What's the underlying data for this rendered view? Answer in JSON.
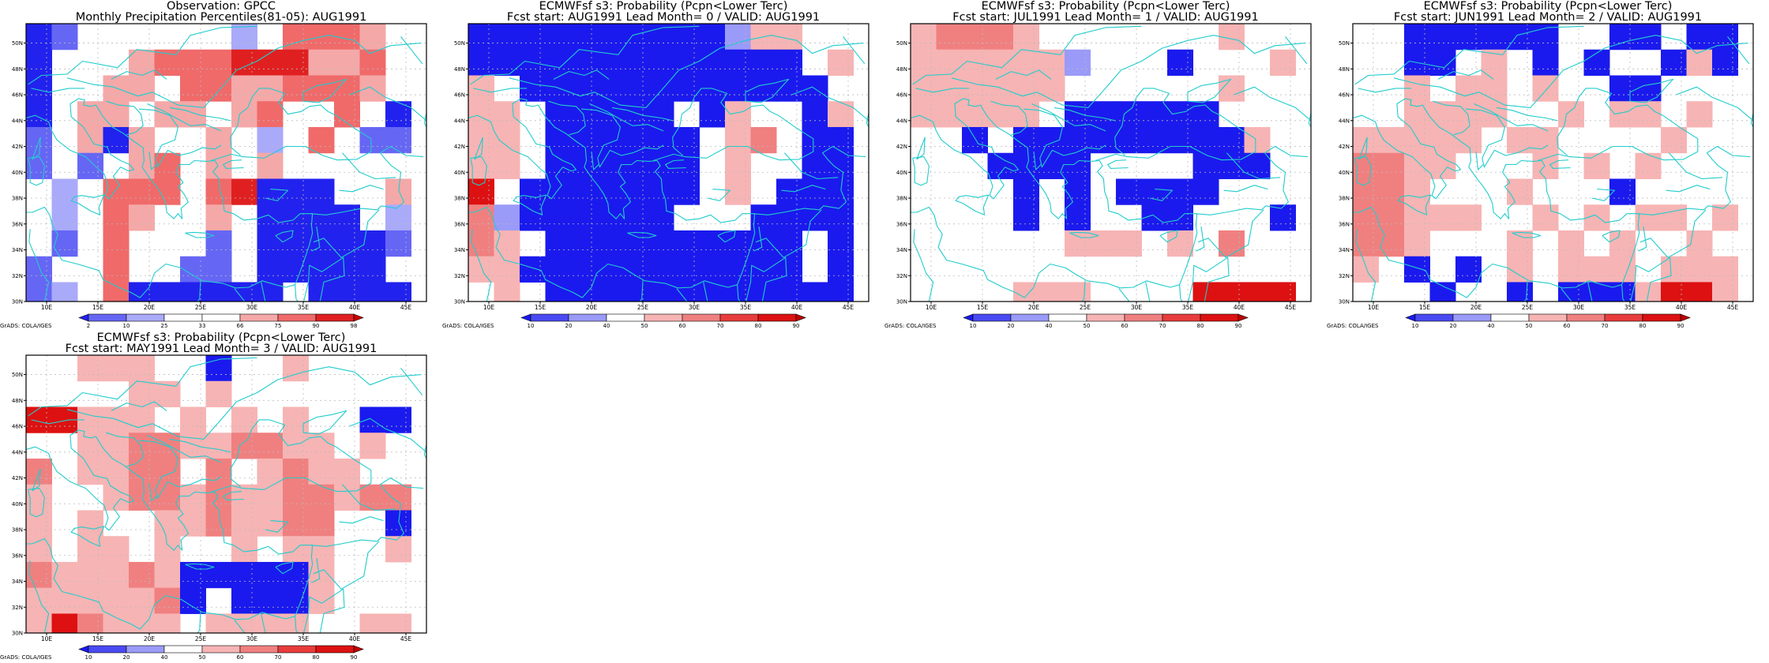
{
  "figure": {
    "lon_range": [
      8,
      47
    ],
    "lat_range": [
      30,
      51.5
    ],
    "x_ticks": [
      {
        "value": 10,
        "label": "10E"
      },
      {
        "value": 15,
        "label": "15E"
      },
      {
        "value": 20,
        "label": "20E"
      },
      {
        "value": 25,
        "label": "25E"
      },
      {
        "value": 30,
        "label": "30E"
      },
      {
        "value": 35,
        "label": "35E"
      },
      {
        "value": 40,
        "label": "40E"
      },
      {
        "value": 45,
        "label": "45E"
      }
    ],
    "y_ticks": [
      {
        "value": 30,
        "label": "30N"
      },
      {
        "value": 32,
        "label": "32N"
      },
      {
        "value": 34,
        "label": "34N"
      },
      {
        "value": 36,
        "label": "36N"
      },
      {
        "value": 38,
        "label": "38N"
      },
      {
        "value": 40,
        "label": "40N"
      },
      {
        "value": 42,
        "label": "42N"
      },
      {
        "value": 44,
        "label": "44N"
      },
      {
        "value": 46,
        "label": "46N"
      },
      {
        "value": 48,
        "label": "48N"
      },
      {
        "value": 50,
        "label": "50N"
      }
    ],
    "grid_lines": "dotted",
    "colors": {
      "grid_cell_size_deg": 2.5,
      "coastline": "#22cccc",
      "obs_scale": [
        "#2222ee",
        "#6666f5",
        "#aaaafa",
        "#ffffff",
        "#ffffff",
        "#f5a8a8",
        "#f06a6a",
        "#e02020",
        "#cc0000"
      ],
      "prob_scale": [
        "#1a1aee",
        "#4a4af2",
        "#9a9af8",
        "#ffffff",
        "#f7b4b4",
        "#f08080",
        "#e83c3c",
        "#dd1111",
        "#c00000"
      ]
    }
  },
  "panels": [
    {
      "id": "obs",
      "title1": "Observation: GPCC",
      "title2": "Monthly Precipitation Percentiles(81-05): AUG1991",
      "colorbar": {
        "scale": "obs",
        "labels": [
          "2",
          "10",
          "25",
          "33",
          "66",
          "75",
          "90",
          "98"
        ]
      },
      "credit": "GrADS: COLA/IGES",
      "grid_ref": "G1"
    },
    {
      "id": "lead0",
      "title1": "ECMWFsf s3: Probability (Pcpn<Lower Terc)",
      "title2": "Fcst start: AUG1991   Lead Month= 0 / VALID: AUG1991",
      "colorbar": {
        "scale": "prob",
        "labels": [
          "10",
          "20",
          "40",
          "50",
          "60",
          "70",
          "80",
          "90"
        ]
      },
      "credit": "GrADS: COLA/IGES",
      "grid_ref": "G2"
    },
    {
      "id": "lead1",
      "title1": "ECMWFsf s3: Probability (Pcpn<Lower Terc)",
      "title2": "Fcst start: JUL1991   Lead Month= 1 / VALID: AUG1991",
      "colorbar": {
        "scale": "prob",
        "labels": [
          "10",
          "20",
          "40",
          "50",
          "60",
          "70",
          "80",
          "90"
        ]
      },
      "credit": "GrADS: COLA/IGES",
      "grid_ref": "G3"
    },
    {
      "id": "lead2",
      "title1": "ECMWFsf s3: Probability (Pcpn<Lower Terc)",
      "title2": "Fcst start: JUN1991   Lead Month= 2 / VALID: AUG1991",
      "colorbar": {
        "scale": "prob",
        "labels": [
          "10",
          "20",
          "40",
          "50",
          "60",
          "70",
          "80",
          "90"
        ]
      },
      "credit": "GrADS: COLA/IGES",
      "grid_ref": "G4"
    },
    {
      "id": "lead3",
      "title1": "ECMWFsf s3: Probability (Pcpn<Lower Terc)",
      "title2": "Fcst start: MAY1991   Lead Month= 3 / VALID: AUG1991",
      "colorbar": {
        "scale": "prob",
        "labels": [
          "10",
          "20",
          "40",
          "50",
          "60",
          "70",
          "80",
          "90"
        ]
      },
      "credit": "GrADS: COLA/IGES",
      "grid_ref": "G5"
    }
  ],
  "grids": {
    "G1": [
      "01..5...2.7776.",
      "0.3.6777888667.",
      "0..66.77667776.",
      "0.66.66.67..7.0",
      "1.606..6.2.7.11",
      "1.1.67.6.6.....",
      ".2.777.78000..6",
      ".2.76..6.0000.2",
      ".1.7...1.000001",
      "1..7..11.00000.",
      "12.7000000.0000"
    ],
    "G2": [
      "1111111111566..",
      "1111111111111.6",
      "6.111111111111.",
      "66.11111.16..16",
      "66.111111.67.11",
      "66.111111.6..11",
      "8.1111111.6.111",
      "75111111...1111",
      "76.1111111111.1",
      "6611111111111.1",
      ".6.111111111111"
    ],
    "G3": [
      "67776.......6..",
      "6666665...1...6",
      "666666......6..",
      "66666.111111...",
      "..1.1111111116.",
      "...1111....111.",
      "....1.1.1111...",
      "....1.1..11...1",
      "......666.6.7..",
      "...............",
      "....666....8888"
    ],
    "G4": [
      "..111111..11.11",
      "..11.6.1.1..161",
      "..6.66.6..11...",
      "..6666..6.66.6.",
      "66666.66....6..",
      "7766...6.6.6...",
      "776...6...1....",
      "77666..6.6.66.6",
      "776...6.6.6..6.",
      "6.1.1.6.666.666",
      "...1..1.1116886"
    ]
  }
}
